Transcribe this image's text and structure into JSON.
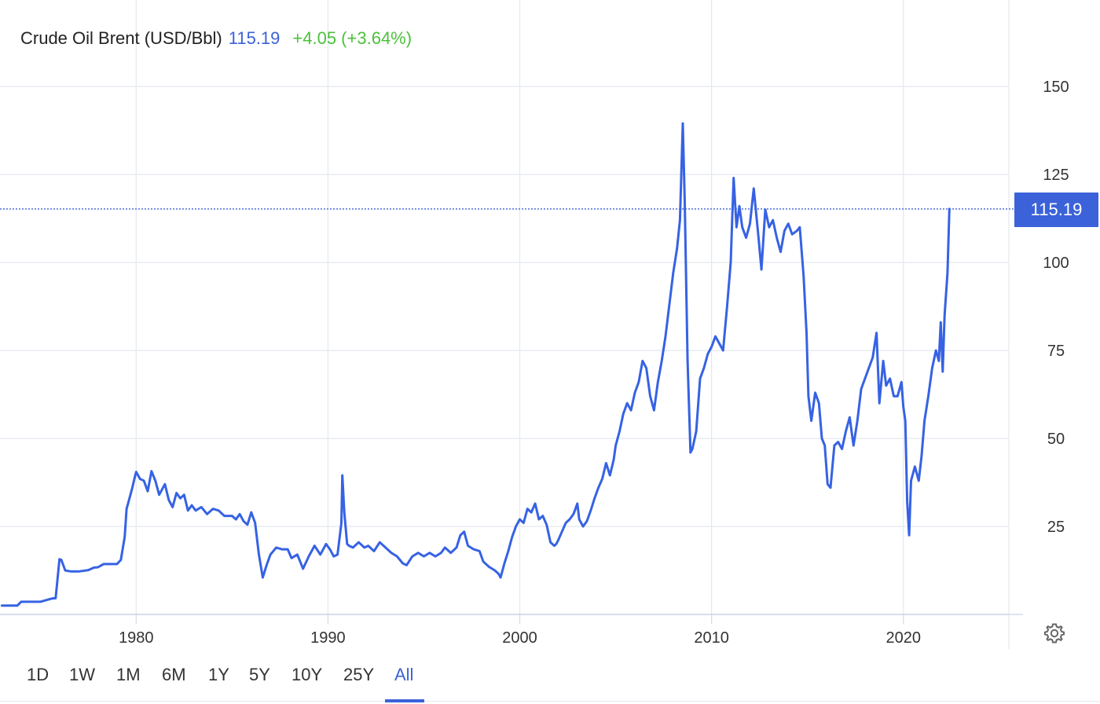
{
  "header": {
    "instrument": "Crude Oil Brent (USD/Bbl)",
    "price": "115.19",
    "change": "+4.05 (+3.64%)",
    "price_color": "#3b62d9",
    "change_color": "#4cc13a"
  },
  "price_tag": "115.19",
  "settings_icon": "gear-icon",
  "range_buttons": [
    "1D",
    "1W",
    "1M",
    "6M",
    "1Y",
    "5Y",
    "10Y",
    "25Y",
    "All"
  ],
  "active_range": "All",
  "chart_data": {
    "type": "line",
    "title": "Crude Oil Brent (USD/Bbl)",
    "xlabel": "",
    "ylabel": "",
    "xlim": [
      1972.9,
      2025.5
    ],
    "ylim": [
      -0.5,
      150
    ],
    "y_axis_position": "right",
    "grid": true,
    "x_ticks": [
      1980,
      1990,
      2000,
      2010,
      2020
    ],
    "y_ticks": [
      25,
      50,
      75,
      100,
      125,
      150
    ],
    "current_value": 115.19,
    "line_color": "#3662e3",
    "series": [
      {
        "name": "",
        "x": [
          1973.0,
          1973.8,
          1974.0,
          1975.0,
          1975.6,
          1975.8,
          1976.0,
          1976.1,
          1976.3,
          1976.6,
          1977.0,
          1977.5,
          1977.8,
          1978.0,
          1978.3,
          1978.6,
          1979.0,
          1979.2,
          1979.4,
          1979.5,
          1979.65,
          1979.8,
          1979.95,
          1980.0,
          1980.2,
          1980.4,
          1980.6,
          1980.8,
          1981.0,
          1981.2,
          1981.5,
          1981.7,
          1981.9,
          1982.1,
          1982.3,
          1982.5,
          1982.7,
          1982.9,
          1983.1,
          1983.4,
          1983.7,
          1984.0,
          1984.3,
          1984.6,
          1984.8,
          1985.0,
          1985.2,
          1985.4,
          1985.6,
          1985.8,
          1986.0,
          1986.2,
          1986.4,
          1986.6,
          1986.8,
          1987.0,
          1987.3,
          1987.6,
          1987.9,
          1988.1,
          1988.4,
          1988.7,
          1989.0,
          1989.3,
          1989.6,
          1989.9,
          1990.1,
          1990.3,
          1990.5,
          1990.7,
          1990.75,
          1990.85,
          1991.0,
          1991.1,
          1991.3,
          1991.6,
          1991.9,
          1992.1,
          1992.4,
          1992.7,
          1993.0,
          1993.3,
          1993.6,
          1993.9,
          1994.1,
          1994.4,
          1994.7,
          1995.0,
          1995.3,
          1995.6,
          1995.9,
          1996.1,
          1996.4,
          1996.7,
          1996.9,
          1997.1,
          1997.3,
          1997.6,
          1997.9,
          1998.1,
          1998.4,
          1998.7,
          1998.9,
          1999.0,
          1999.2,
          1999.4,
          1999.6,
          1999.8,
          2000.0,
          2000.2,
          2000.4,
          2000.6,
          2000.8,
          2001.0,
          2001.2,
          2001.4,
          2001.6,
          2001.8,
          2001.9,
          2002.0,
          2002.2,
          2002.4,
          2002.6,
          2002.8,
          2003.0,
          2003.1,
          2003.3,
          2003.5,
          2003.7,
          2003.9,
          2004.1,
          2004.3,
          2004.5,
          2004.7,
          2004.9,
          2005.0,
          2005.2,
          2005.4,
          2005.6,
          2005.8,
          2006.0,
          2006.2,
          2006.4,
          2006.6,
          2006.8,
          2007.0,
          2007.2,
          2007.4,
          2007.6,
          2007.8,
          2008.0,
          2008.2,
          2008.35,
          2008.5,
          2008.6,
          2008.75,
          2008.9,
          2009.0,
          2009.2,
          2009.4,
          2009.6,
          2009.8,
          2010.0,
          2010.2,
          2010.4,
          2010.6,
          2010.8,
          2011.0,
          2011.15,
          2011.3,
          2011.45,
          2011.6,
          2011.8,
          2012.0,
          2012.2,
          2012.45,
          2012.6,
          2012.8,
          2013.0,
          2013.2,
          2013.4,
          2013.6,
          2013.8,
          2014.0,
          2014.2,
          2014.45,
          2014.6,
          2014.8,
          2014.95,
          2015.05,
          2015.2,
          2015.4,
          2015.6,
          2015.75,
          2015.9,
          2016.05,
          2016.2,
          2016.4,
          2016.6,
          2016.8,
          2017.0,
          2017.2,
          2017.4,
          2017.6,
          2017.8,
          2018.0,
          2018.2,
          2018.4,
          2018.6,
          2018.75,
          2018.95,
          2019.1,
          2019.3,
          2019.5,
          2019.7,
          2019.9,
          2020.0,
          2020.1,
          2020.2,
          2020.3,
          2020.4,
          2020.6,
          2020.8,
          2020.95,
          2021.1,
          2021.3,
          2021.5,
          2021.7,
          2021.85,
          2021.95,
          2022.05,
          2022.15,
          2022.3,
          2022.4
        ],
        "values": [
          2.5,
          2.5,
          3.6,
          3.6,
          4.5,
          4.6,
          15.7,
          15.5,
          12.5,
          12.2,
          12.2,
          12.6,
          13.3,
          13.4,
          14.3,
          14.3,
          14.3,
          15.5,
          22,
          30,
          33,
          36,
          39.5,
          40.5,
          38.5,
          38,
          35,
          40.7,
          38,
          34,
          37,
          32.5,
          30.5,
          34.5,
          33,
          34,
          29.5,
          31,
          29.5,
          30.5,
          28.5,
          30,
          29.5,
          28,
          28,
          28,
          27,
          28.5,
          26.5,
          25.5,
          29,
          26,
          17,
          10.5,
          14,
          17,
          19,
          18.5,
          18.5,
          16,
          17,
          13,
          16.5,
          19.5,
          17,
          20,
          18.5,
          16.5,
          17,
          26,
          39.5,
          29,
          20,
          19.5,
          19,
          20.5,
          19,
          19.5,
          18,
          20.5,
          19,
          17.5,
          16.5,
          14.5,
          14,
          16.5,
          17.5,
          16.5,
          17.5,
          16.5,
          17.5,
          19,
          17.5,
          19,
          22.5,
          23.5,
          19.5,
          18.5,
          18,
          15,
          13.5,
          12.5,
          11.5,
          10.5,
          14.5,
          18,
          22,
          25,
          27,
          26,
          30,
          29,
          31.5,
          27,
          28,
          25.5,
          20.5,
          19.5,
          20,
          21,
          23.5,
          26,
          27,
          28.5,
          31.5,
          27,
          25,
          26.5,
          29.5,
          33,
          36,
          38.5,
          43,
          39.5,
          44,
          48,
          52,
          57,
          60,
          58,
          63,
          66,
          72,
          70,
          62,
          58,
          66,
          72,
          79,
          88,
          97,
          104,
          112,
          139.5,
          117,
          72,
          46,
          47,
          52,
          67,
          70,
          74,
          76,
          79,
          77,
          75,
          87,
          100,
          124,
          110,
          116,
          110,
          107,
          111,
          121,
          107,
          98,
          115,
          110,
          112,
          107,
          103,
          109,
          111,
          108,
          109,
          110,
          96,
          80,
          62,
          55,
          63,
          60,
          50,
          48,
          37,
          36,
          48,
          49,
          47,
          52,
          56,
          48,
          55,
          64,
          67,
          70,
          73,
          80,
          60,
          72,
          65,
          67,
          62,
          62,
          66,
          59,
          55,
          32,
          22.5,
          38,
          42,
          38,
          45,
          55,
          62,
          70,
          75,
          72,
          83,
          69,
          85,
          97,
          115.19
        ]
      }
    ]
  }
}
